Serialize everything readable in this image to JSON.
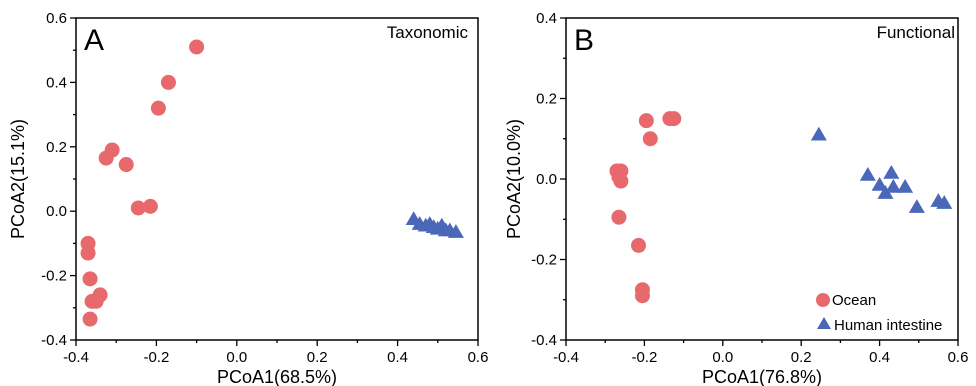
{
  "colors": {
    "ocean": "#e8696b",
    "human_intestine": "#4a67b8"
  },
  "chart_data": [
    {
      "type": "scatter",
      "panel_label": "A",
      "title": "Taxonomic",
      "xlabel": "PCoA1(68.5%)",
      "ylabel": "PCoA2(15.1%)",
      "xlim": [
        -0.4,
        0.6
      ],
      "ylim": [
        -0.4,
        0.6
      ],
      "xticks": [
        -0.4,
        -0.2,
        0.0,
        0.2,
        0.4,
        0.6
      ],
      "yticks": [
        -0.4,
        -0.2,
        0.0,
        0.2,
        0.4,
        0.6
      ],
      "x_tick_labels": [
        "-0.4",
        "-0.2",
        "0.0",
        "0.2",
        "0.4",
        "0.6"
      ],
      "y_tick_labels": [
        "-0.4",
        "-0.2",
        "0.0",
        "0.2",
        "0.4",
        "0.6"
      ],
      "grid": false,
      "series": [
        {
          "key": "ocean",
          "marker": "circle",
          "points": [
            {
              "x": -0.1,
              "y": 0.51
            },
            {
              "x": -0.17,
              "y": 0.4
            },
            {
              "x": -0.195,
              "y": 0.32
            },
            {
              "x": -0.31,
              "y": 0.19
            },
            {
              "x": -0.325,
              "y": 0.165
            },
            {
              "x": -0.275,
              "y": 0.145
            },
            {
              "x": -0.245,
              "y": 0.01
            },
            {
              "x": -0.215,
              "y": 0.015
            },
            {
              "x": -0.37,
              "y": -0.1
            },
            {
              "x": -0.37,
              "y": -0.13
            },
            {
              "x": -0.365,
              "y": -0.21
            },
            {
              "x": -0.34,
              "y": -0.26
            },
            {
              "x": -0.36,
              "y": -0.28
            },
            {
              "x": -0.35,
              "y": -0.28
            },
            {
              "x": -0.365,
              "y": -0.335
            }
          ]
        },
        {
          "key": "human_intestine",
          "marker": "triangle",
          "points": [
            {
              "x": 0.44,
              "y": -0.025
            },
            {
              "x": 0.455,
              "y": -0.04
            },
            {
              "x": 0.47,
              "y": -0.045
            },
            {
              "x": 0.48,
              "y": -0.04
            },
            {
              "x": 0.49,
              "y": -0.05
            },
            {
              "x": 0.5,
              "y": -0.055
            },
            {
              "x": 0.51,
              "y": -0.045
            },
            {
              "x": 0.52,
              "y": -0.06
            },
            {
              "x": 0.53,
              "y": -0.06
            },
            {
              "x": 0.545,
              "y": -0.065
            }
          ]
        }
      ]
    },
    {
      "type": "scatter",
      "panel_label": "B",
      "title": "Functional",
      "xlabel": "PCoA1(76.8%)",
      "ylabel": "PCoA2(10.0%)",
      "xlim": [
        -0.4,
        0.6
      ],
      "ylim": [
        -0.4,
        0.4
      ],
      "xticks": [
        -0.4,
        -0.2,
        0.0,
        0.2,
        0.4,
        0.6
      ],
      "yticks": [
        -0.4,
        -0.2,
        0.0,
        0.2,
        0.4
      ],
      "x_tick_labels": [
        "-0.4",
        "-0.2",
        "0.0",
        "0.2",
        "0.4",
        "0.6"
      ],
      "y_tick_labels": [
        "-0.4",
        "-0.2",
        "0.0",
        "0.2",
        "0.4"
      ],
      "grid": false,
      "legend": {
        "position": "bottom-right",
        "entries": [
          {
            "label": "Ocean",
            "key": "ocean",
            "marker": "circle"
          },
          {
            "label": "Human intestine",
            "key": "human_intestine",
            "marker": "triangle"
          }
        ]
      },
      "series": [
        {
          "key": "ocean",
          "marker": "circle",
          "points": [
            {
              "x": -0.135,
              "y": 0.15
            },
            {
              "x": -0.125,
              "y": 0.15
            },
            {
              "x": -0.195,
              "y": 0.145
            },
            {
              "x": -0.185,
              "y": 0.1
            },
            {
              "x": -0.27,
              "y": 0.02
            },
            {
              "x": -0.26,
              "y": 0.02
            },
            {
              "x": -0.265,
              "y": 0.005
            },
            {
              "x": -0.26,
              "y": -0.005
            },
            {
              "x": -0.265,
              "y": -0.095
            },
            {
              "x": -0.215,
              "y": -0.165
            },
            {
              "x": -0.205,
              "y": -0.275
            },
            {
              "x": -0.205,
              "y": -0.29
            }
          ]
        },
        {
          "key": "human_intestine",
          "marker": "triangle",
          "points": [
            {
              "x": 0.245,
              "y": 0.11
            },
            {
              "x": 0.37,
              "y": 0.01
            },
            {
              "x": 0.43,
              "y": 0.015
            },
            {
              "x": 0.4,
              "y": -0.015
            },
            {
              "x": 0.435,
              "y": -0.02
            },
            {
              "x": 0.465,
              "y": -0.02
            },
            {
              "x": 0.415,
              "y": -0.035
            },
            {
              "x": 0.495,
              "y": -0.07
            },
            {
              "x": 0.55,
              "y": -0.055
            },
            {
              "x": 0.565,
              "y": -0.06
            }
          ]
        }
      ]
    }
  ]
}
